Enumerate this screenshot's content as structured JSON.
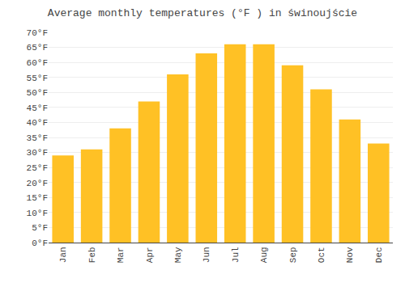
{
  "chart_data": {
    "type": "bar",
    "title": "Average monthly temperatures (°F ) in świnoujście",
    "categories": [
      "Jan",
      "Feb",
      "Mar",
      "Apr",
      "May",
      "Jun",
      "Jul",
      "Aug",
      "Sep",
      "Oct",
      "Nov",
      "Dec"
    ],
    "values": [
      29,
      31,
      38,
      47,
      56,
      63,
      66,
      66,
      59,
      51,
      41,
      33
    ],
    "color": "#FFC125",
    "ylim": [
      0,
      70
    ],
    "yticks": [
      {
        "value": 0,
        "label": "0°F"
      },
      {
        "value": 5,
        "label": "5°F"
      },
      {
        "value": 10,
        "label": "10°F"
      },
      {
        "value": 15,
        "label": "15°F"
      },
      {
        "value": 20,
        "label": "20°F"
      },
      {
        "value": 25,
        "label": "25°F"
      },
      {
        "value": 30,
        "label": "30°F"
      },
      {
        "value": 35,
        "label": "35°F"
      },
      {
        "value": 40,
        "label": "40°F"
      },
      {
        "value": 45,
        "label": "45°F"
      },
      {
        "value": 50,
        "label": "50°F"
      },
      {
        "value": 55,
        "label": "55°F"
      },
      {
        "value": 60,
        "label": "60°F"
      },
      {
        "value": 65,
        "label": "65°F"
      },
      {
        "value": 70,
        "label": "70°F"
      }
    ],
    "grid": true
  }
}
